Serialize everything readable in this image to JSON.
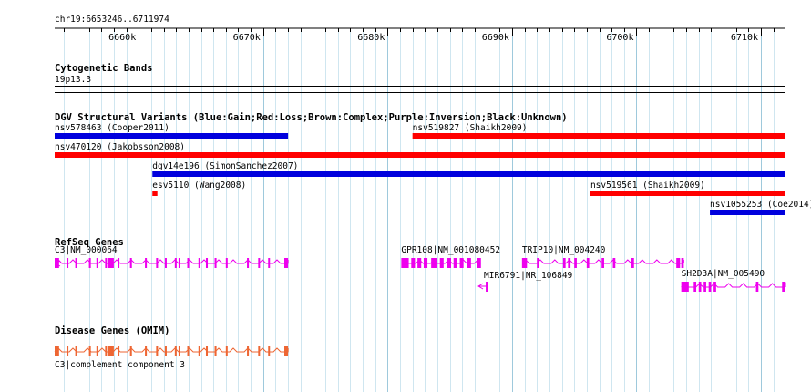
{
  "ruler": {
    "region": "chr19:6653246..6711974",
    "ticks": [
      {
        "label": "6660k",
        "pos": 6660000
      },
      {
        "label": "6670k",
        "pos": 6670000
      },
      {
        "label": "6680k",
        "pos": 6680000
      },
      {
        "label": "6690k",
        "pos": 6690000
      },
      {
        "label": "6700k",
        "pos": 6700000
      },
      {
        "label": "6710k",
        "pos": 6710000
      }
    ]
  },
  "tracks": {
    "cytoband": {
      "title": "Cytogenetic Bands",
      "band": "19p13.3"
    },
    "dgv": {
      "title": "DGV Structural Variants (Blue:Gain;Red:Loss;Brown:Complex;Purple:Inversion;Black:Unknown)",
      "colors": {
        "gain": "#0000dd",
        "loss": "#ff0000"
      },
      "features": [
        {
          "label": "nsv578463 (Cooper2011)",
          "type": "gain",
          "start": 6653246,
          "end": 6672000,
          "row": 0
        },
        {
          "label": "nsv519827 (Shaikh2009)",
          "type": "loss",
          "start": 6682000,
          "end": 6711974,
          "row": 0
        },
        {
          "label": "nsv470120 (Jakobsson2008)",
          "type": "loss",
          "start": 6653246,
          "end": 6711974,
          "row": 1
        },
        {
          "label": "dgv14e196 (SimonSanchez2007)",
          "type": "gain",
          "start": 6661100,
          "end": 6711974,
          "row": 2
        },
        {
          "label": "esv5110 (Wang2008)",
          "type": "loss",
          "start": 6661100,
          "end": 6661500,
          "row": 3
        },
        {
          "label": "nsv519561 (Shaikh2009)",
          "type": "loss",
          "start": 6696300,
          "end": 6711974,
          "row": 3
        },
        {
          "label": "nsv1055253 (Coe2014)",
          "type": "gain",
          "start": 6705900,
          "end": 6711974,
          "row": 4
        }
      ]
    },
    "refseq": {
      "title": "RefSeq Genes",
      "color": "#ee00ee",
      "genes": [
        {
          "label": "C3|NM_000064",
          "start": 6653246,
          "end": 6672000,
          "row": 0,
          "strand": "-",
          "exons": [
            [
              6653246,
              6653600
            ],
            [
              6654200,
              6654350
            ],
            [
              6654900,
              6655000
            ],
            [
              6656000,
              6656150
            ],
            [
              6656600,
              6656700
            ],
            [
              6657300,
              6657400
            ],
            [
              6657500,
              6658000
            ],
            [
              6658300,
              6658450
            ],
            [
              6659300,
              6659450
            ],
            [
              6660500,
              6660650
            ],
            [
              6661400,
              6661550
            ],
            [
              6662100,
              6662250
            ],
            [
              6662900,
              6663000
            ],
            [
              6663200,
              6663300
            ],
            [
              6663900,
              6664000
            ],
            [
              6664800,
              6664950
            ],
            [
              6665400,
              6665550
            ],
            [
              6666100,
              6666250
            ],
            [
              6667000,
              6667100
            ],
            [
              6668700,
              6668850
            ],
            [
              6669600,
              6669700
            ],
            [
              6670400,
              6670500
            ],
            [
              6671700,
              6672000
            ]
          ]
        },
        {
          "label": "GPR108|NM_001080452",
          "start": 6681100,
          "end": 6687500,
          "row": 0,
          "strand": "-",
          "exons": [
            [
              6681100,
              6681700
            ],
            [
              6681900,
              6682200
            ],
            [
              6682400,
              6682700
            ],
            [
              6682900,
              6683200
            ],
            [
              6683500,
              6684000
            ],
            [
              6684200,
              6684500
            ],
            [
              6684800,
              6685100
            ],
            [
              6685300,
              6685600
            ],
            [
              6685800,
              6686100
            ],
            [
              6686400,
              6686700
            ],
            [
              6687200,
              6687500
            ]
          ]
        },
        {
          "label": "TRIP10|NM_004240",
          "start": 6690800,
          "end": 6703800,
          "row": 0,
          "strand": "+",
          "exons": [
            [
              6690800,
              6691200
            ],
            [
              6692000,
              6692200
            ],
            [
              6694100,
              6694300
            ],
            [
              6694500,
              6694700
            ],
            [
              6695000,
              6695200
            ],
            [
              6696000,
              6696200
            ],
            [
              6697200,
              6697400
            ],
            [
              6698100,
              6698300
            ],
            [
              6699600,
              6699800
            ],
            [
              6703200,
              6703500
            ],
            [
              6703600,
              6703800
            ]
          ]
        },
        {
          "label": "MIR6791|NR_106849",
          "start": 6687300,
          "end": 6687800,
          "row": 1,
          "strand": "-",
          "exons": [
            [
              6687300,
              6687500
            ]
          ]
        },
        {
          "label": "SH2D3A|NM_005490",
          "start": 6703600,
          "end": 6711974,
          "row": 2,
          "strand": "-",
          "exons": [
            [
              6703600,
              6704200
            ],
            [
              6704600,
              6704800
            ],
            [
              6705000,
              6705200
            ],
            [
              6705400,
              6705600
            ],
            [
              6705800,
              6706000
            ],
            [
              6706200,
              6706400
            ],
            [
              6709600,
              6709800
            ],
            [
              6711700,
              6711974
            ]
          ]
        }
      ]
    },
    "omim": {
      "title": "Disease Genes (OMIM)",
      "color": "#ee6633",
      "genes": [
        {
          "label": "C3|complement component 3",
          "start": 6653246,
          "end": 6672000,
          "row": 0,
          "exons": [
            [
              6653246,
              6653600
            ],
            [
              6654200,
              6654350
            ],
            [
              6654900,
              6655000
            ],
            [
              6656000,
              6656150
            ],
            [
              6656600,
              6656700
            ],
            [
              6657300,
              6657400
            ],
            [
              6657500,
              6658000
            ],
            [
              6658300,
              6658450
            ],
            [
              6659300,
              6659450
            ],
            [
              6660500,
              6660650
            ],
            [
              6661400,
              6661550
            ],
            [
              6662100,
              6662250
            ],
            [
              6662900,
              6663000
            ],
            [
              6663200,
              6663300
            ],
            [
              6663900,
              6664000
            ],
            [
              6664800,
              6664950
            ],
            [
              6665400,
              6665550
            ],
            [
              6666100,
              6666250
            ],
            [
              6667000,
              6667100
            ],
            [
              6668700,
              6668850
            ],
            [
              6669600,
              6669700
            ],
            [
              6670400,
              6670500
            ],
            [
              6671700,
              6672000
            ]
          ]
        }
      ]
    }
  }
}
